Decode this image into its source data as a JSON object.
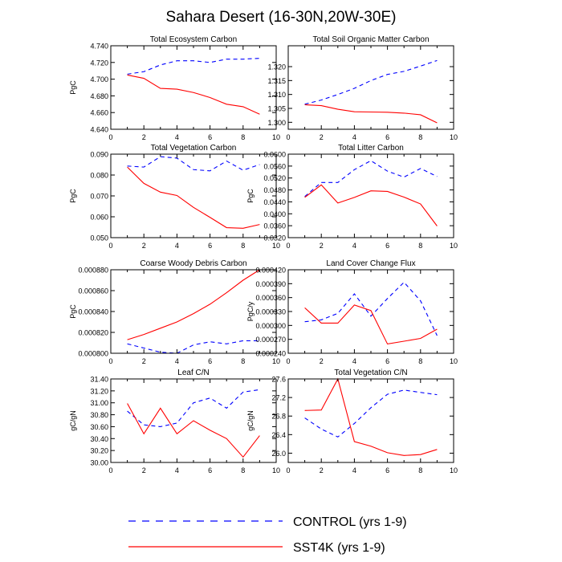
{
  "figure_title": "Sahara Desert (16-30N,20W-30E)",
  "legend": [
    {
      "label": "CONTROL (yrs 1-9)",
      "color": "#0000ff",
      "dash": true
    },
    {
      "label": "SST4K (yrs 1-9)",
      "color": "#ff0000",
      "dash": false
    }
  ],
  "chart_data": [
    {
      "type": "line",
      "title": "Total Ecosystem Carbon",
      "xlabel": "",
      "ylabel": "PgC",
      "xlim": [
        0,
        10
      ],
      "ylim": [
        4.64,
        4.74
      ],
      "xticks": [
        0,
        2,
        4,
        6,
        8,
        10
      ],
      "xticklabels": [
        "0",
        "2",
        "4",
        "6",
        "8",
        "10"
      ],
      "yticks": [
        4.64,
        4.66,
        4.68,
        4.7,
        4.72,
        4.74
      ],
      "yticklabels": [
        "4.640",
        "4.660",
        "4.680",
        "4.700",
        "4.720",
        "4.740"
      ],
      "x": [
        1,
        2,
        3,
        4,
        5,
        6,
        7,
        8,
        9
      ],
      "series": [
        {
          "name": "CONTROL (yrs 1-9)",
          "values": [
            4.706,
            4.709,
            4.717,
            4.722,
            4.722,
            4.72,
            4.724,
            4.724,
            4.725
          ]
        },
        {
          "name": "SST4K (yrs 1-9)",
          "values": [
            4.705,
            4.701,
            4.689,
            4.688,
            4.684,
            4.678,
            4.67,
            4.667,
            4.658
          ]
        }
      ]
    },
    {
      "type": "line",
      "title": "Total Soil Organic Matter Carbon",
      "xlabel": "",
      "ylabel": "",
      "xlim": [
        0,
        10
      ],
      "ylim": [
        1.2975,
        1.3275
      ],
      "xticks": [
        0,
        2,
        4,
        6,
        8,
        10
      ],
      "xticklabels": [
        "0",
        "2",
        "4",
        "6",
        "8",
        "10"
      ],
      "yticks": [
        1.3,
        1.305,
        1.31,
        1.315,
        1.32
      ],
      "yticklabels": [
        "1.300",
        "1.305",
        "1.310",
        "1.315",
        "1.320"
      ],
      "x": [
        1,
        2,
        3,
        4,
        5,
        6,
        7,
        8,
        9
      ],
      "series": [
        {
          "name": "CONTROL (yrs 1-9)",
          "values": [
            1.3065,
            1.308,
            1.31,
            1.3122,
            1.315,
            1.3172,
            1.3183,
            1.3202,
            1.3222
          ]
        },
        {
          "name": "SST4K (yrs 1-9)",
          "values": [
            1.3063,
            1.306,
            1.3047,
            1.3038,
            1.3037,
            1.3036,
            1.3033,
            1.3027,
            1.2998
          ]
        }
      ]
    },
    {
      "type": "line",
      "title": "Total Vegetation Carbon",
      "xlabel": "",
      "ylabel": "PgC",
      "xlim": [
        0,
        10
      ],
      "ylim": [
        0.05,
        0.09
      ],
      "xticks": [
        0,
        2,
        4,
        6,
        8,
        10
      ],
      "xticklabels": [
        "0",
        "2",
        "4",
        "6",
        "8",
        "10"
      ],
      "yticks": [
        0.05,
        0.06,
        0.07,
        0.08,
        0.09
      ],
      "yticklabels": [
        "0.050",
        "0.060",
        "0.070",
        "0.080",
        "0.090"
      ],
      "x": [
        1,
        2,
        3,
        4,
        5,
        6,
        7,
        8,
        9
      ],
      "series": [
        {
          "name": "CONTROL (yrs 1-9)",
          "values": [
            0.0843,
            0.0838,
            0.0888,
            0.0881,
            0.0826,
            0.082,
            0.0867,
            0.0823,
            0.085
          ]
        },
        {
          "name": "SST4K (yrs 1-9)",
          "values": [
            0.0838,
            0.076,
            0.0718,
            0.0702,
            0.0645,
            0.0597,
            0.0548,
            0.0545,
            0.0563
          ]
        }
      ]
    },
    {
      "type": "line",
      "title": "Total Litter Carbon",
      "xlabel": "",
      "ylabel": "PgC",
      "xlim": [
        0,
        10
      ],
      "ylim": [
        0.032,
        0.06
      ],
      "xticks": [
        0,
        2,
        4,
        6,
        8,
        10
      ],
      "xticklabels": [
        "0",
        "2",
        "4",
        "6",
        "8",
        "10"
      ],
      "yticks": [
        0.032,
        0.036,
        0.04,
        0.044,
        0.048,
        0.052,
        0.056,
        0.06
      ],
      "yticklabels": [
        "0.0320",
        "0.0360",
        "0.0400",
        "0.0440",
        "0.0480",
        "0.0520",
        "0.0560",
        "0.0600"
      ],
      "x": [
        1,
        2,
        3,
        4,
        5,
        6,
        7,
        8,
        9
      ],
      "series": [
        {
          "name": "CONTROL (yrs 1-9)",
          "values": [
            0.0458,
            0.0505,
            0.0505,
            0.0548,
            0.0578,
            0.0543,
            0.0523,
            0.0552,
            0.0525
          ]
        },
        {
          "name": "SST4K (yrs 1-9)",
          "values": [
            0.0455,
            0.0497,
            0.0436,
            0.0455,
            0.0477,
            0.0475,
            0.0456,
            0.0433,
            0.0359
          ]
        }
      ]
    },
    {
      "type": "line",
      "title": "Coarse Woody Debris Carbon",
      "xlabel": "",
      "ylabel": "PgC",
      "xlim": [
        0,
        10
      ],
      "ylim": [
        0.0008,
        0.00088
      ],
      "xticks": [
        0,
        2,
        4,
        6,
        8,
        10
      ],
      "xticklabels": [
        "0",
        "2",
        "4",
        "6",
        "8",
        "10"
      ],
      "yticks": [
        0.0008,
        0.00082,
        0.00084,
        0.00086,
        0.00088
      ],
      "yticklabels": [
        "0.000800",
        "0.000820",
        "0.000840",
        "0.000860",
        "0.000880"
      ],
      "x": [
        1,
        2,
        3,
        4,
        5,
        6,
        7,
        8,
        9
      ],
      "series": [
        {
          "name": "CONTROL (yrs 1-9)",
          "values": [
            0.000809,
            0.000805,
            0.000801,
            0.0008,
            0.000808,
            0.000811,
            0.000809,
            0.000812,
            0.000812
          ]
        },
        {
          "name": "SST4K (yrs 1-9)",
          "values": [
            0.000813,
            0.000818,
            0.000824,
            0.00083,
            0.000838,
            0.000847,
            0.000858,
            0.00087,
            0.00088
          ]
        }
      ]
    },
    {
      "type": "line",
      "title": "Land Cover Change Flux",
      "xlabel": "",
      "ylabel": "PgC/y",
      "xlim": [
        0,
        10
      ],
      "ylim": [
        0.00024,
        0.00042
      ],
      "xticks": [
        0,
        2,
        4,
        6,
        8,
        10
      ],
      "xticklabels": [
        "0",
        "2",
        "4",
        "6",
        "8",
        "10"
      ],
      "yticks": [
        0.00024,
        0.00027,
        0.0003,
        0.00033,
        0.00036,
        0.00039,
        0.00042
      ],
      "yticklabels": [
        "0.000240",
        "0.000270",
        "0.000300",
        "0.000330",
        "0.000360",
        "0.000390",
        "0.000420"
      ],
      "x": [
        1,
        2,
        3,
        4,
        5,
        6,
        7,
        8,
        9
      ],
      "series": [
        {
          "name": "CONTROL (yrs 1-9)",
          "values": [
            0.000308,
            0.000312,
            0.000326,
            0.000368,
            0.00032,
            0.000358,
            0.000393,
            0.000353,
            0.000278
          ]
        },
        {
          "name": "SST4K (yrs 1-9)",
          "values": [
            0.000338,
            0.000305,
            0.000305,
            0.000344,
            0.000332,
            0.00026,
            0.000266,
            0.000272,
            0.000292
          ]
        }
      ]
    },
    {
      "type": "line",
      "title": "Leaf C/N",
      "xlabel": "",
      "ylabel": "gC/gN",
      "xlim": [
        0,
        10
      ],
      "ylim": [
        30.0,
        31.4
      ],
      "xticks": [
        0,
        2,
        4,
        6,
        8,
        10
      ],
      "xticklabels": [
        "0",
        "2",
        "4",
        "6",
        "8",
        "10"
      ],
      "yticks": [
        30.0,
        30.2,
        30.4,
        30.6,
        30.8,
        31.0,
        31.2,
        31.4
      ],
      "yticklabels": [
        "30.00",
        "30.20",
        "30.40",
        "30.60",
        "30.80",
        "31.00",
        "31.20",
        "31.40"
      ],
      "x": [
        1,
        2,
        3,
        4,
        5,
        6,
        7,
        8,
        9
      ],
      "series": [
        {
          "name": "CONTROL (yrs 1-9)",
          "values": [
            30.86,
            30.63,
            30.6,
            30.66,
            31.0,
            31.08,
            30.91,
            31.18,
            31.22
          ]
        },
        {
          "name": "SST4K (yrs 1-9)",
          "values": [
            30.99,
            30.48,
            30.91,
            30.48,
            30.7,
            30.54,
            30.4,
            30.09,
            30.45
          ]
        }
      ]
    },
    {
      "type": "line",
      "title": "Total Vegetation C/N",
      "xlabel": "",
      "ylabel": "gC/gN",
      "xlim": [
        0,
        10
      ],
      "ylim": [
        25.8,
        27.6
      ],
      "xticks": [
        0,
        2,
        4,
        6,
        8,
        10
      ],
      "xticklabels": [
        "0",
        "2",
        "4",
        "6",
        "8",
        "10"
      ],
      "yticks": [
        26.0,
        26.4,
        26.8,
        27.2,
        27.6
      ],
      "yticklabels": [
        "26.0",
        "26.4",
        "26.8",
        "27.2",
        "27.6"
      ],
      "x": [
        1,
        2,
        3,
        4,
        5,
        6,
        7,
        8,
        9
      ],
      "series": [
        {
          "name": "CONTROL (yrs 1-9)",
          "values": [
            26.76,
            26.52,
            26.35,
            26.64,
            26.98,
            27.27,
            27.36,
            27.31,
            27.26
          ]
        },
        {
          "name": "SST4K (yrs 1-9)",
          "values": [
            26.92,
            26.93,
            27.6,
            26.25,
            26.15,
            26.01,
            25.95,
            25.97,
            26.08
          ]
        }
      ]
    }
  ]
}
